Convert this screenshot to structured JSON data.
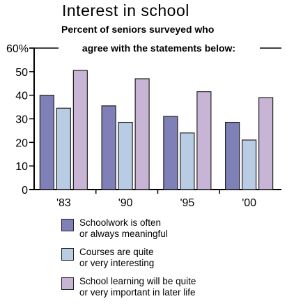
{
  "chart_data": {
    "type": "bar",
    "title": "Interest in school",
    "subtitle_line1": "Percent of seniors surveyed who",
    "subtitle_line2": "agree with the statements below:",
    "categories": [
      "'83",
      "'90",
      "'95",
      "'00"
    ],
    "series": [
      {
        "name": "Schoolwork is often\nor always meaningful",
        "values": [
          40,
          35.5,
          31,
          28.5
        ],
        "color": "#8080b8"
      },
      {
        "name": "Courses are quite\nor very interesting",
        "values": [
          34.5,
          28.5,
          24,
          21
        ],
        "color": "#b8cce4"
      },
      {
        "name": "School learning will be quite\nor very important in later life",
        "values": [
          50.5,
          47,
          41.5,
          39
        ],
        "color": "#c8b4d4"
      }
    ],
    "yticks": [
      "0",
      "10",
      "20",
      "30",
      "40",
      "50",
      "60%"
    ],
    "ylim": [
      0,
      60
    ],
    "grid": false
  }
}
